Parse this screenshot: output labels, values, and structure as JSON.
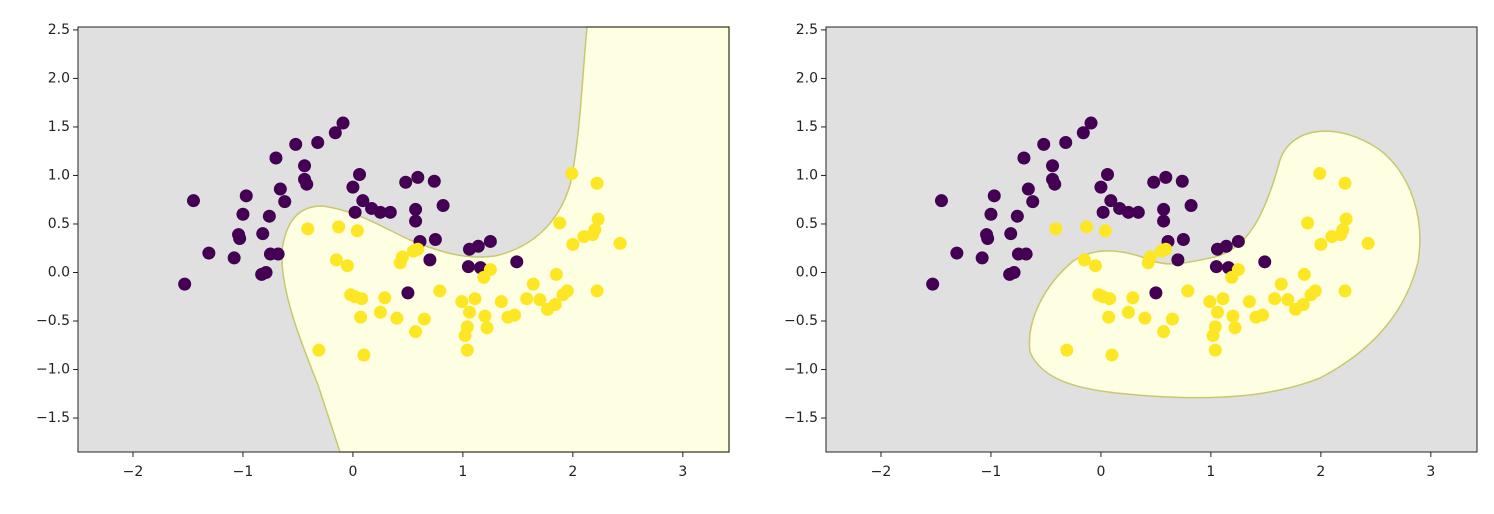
{
  "chart_data": [
    {
      "type": "scatter",
      "xlim": [
        -2.5,
        3.42
      ],
      "ylim": [
        -1.85,
        2.53
      ],
      "xticks": [
        {
          "value": -2,
          "label": "−2"
        },
        {
          "value": -1,
          "label": "−1"
        },
        0,
        1,
        2,
        3
      ],
      "yticks": [
        {
          "value": -1.5,
          "label": "−1.5"
        },
        {
          "value": -1,
          "label": "−1.0"
        },
        {
          "value": -0.5,
          "label": "−0.5"
        },
        {
          "value": 0,
          "label": "0.0"
        },
        0.5,
        {
          "value": 1,
          "label": "1.0"
        },
        1.5,
        {
          "value": 2,
          "label": "2.0"
        },
        2.5
      ],
      "series": [
        {
          "color": "#440154",
          "x": [
            -1.53,
            -1.45,
            -1.31,
            -1.08,
            -1.03,
            -1.0,
            -0.97,
            -1.04,
            -0.82,
            -0.83,
            -0.79,
            -0.76,
            -0.75,
            -0.68,
            -0.7,
            -0.66,
            -0.62,
            -0.52,
            -0.44,
            -0.44,
            -0.42,
            -0.32,
            -0.16,
            -0.09,
            0,
            0.06,
            0.02,
            0.09,
            0.17,
            0.25,
            0.34,
            0.48,
            0.59,
            0.57,
            0.57,
            0.61,
            0.74,
            0.75,
            0.82,
            0.7,
            0.5,
            1.06,
            1.14,
            1.25,
            1.05,
            1.16,
            1.49
          ],
          "y": [
            -0.12,
            0.74,
            0.2,
            0.15,
            0.35,
            0.6,
            0.79,
            0.39,
            0.4,
            -0.02,
            0.0,
            0.58,
            0.19,
            0.19,
            1.18,
            0.86,
            0.73,
            1.32,
            1.1,
            0.96,
            0.91,
            1.34,
            1.44,
            1.54,
            0.88,
            1.01,
            0.62,
            0.74,
            0.66,
            0.62,
            0.62,
            0.93,
            0.98,
            0.65,
            0.53,
            0.32,
            0.94,
            0.34,
            0.69,
            0.13,
            -0.21,
            0.24,
            0.27,
            0.32,
            0.06,
            0.05,
            0.11
          ]
        },
        {
          "color": "#fde725",
          "x": [
            -0.41,
            -0.13,
            0.04,
            -0.15,
            -0.05,
            0.02,
            0.08,
            -0.02,
            0.07,
            0.25,
            0.29,
            0.4,
            0.43,
            0.45,
            0.55,
            0.59,
            0.57,
            0.65,
            0.79,
            -0.31,
            0.1,
            0.99,
            1.04,
            1.02,
            1.04,
            1.06,
            1.11,
            1.2,
            1.22,
            1.25,
            1.19,
            1.35,
            1.41,
            1.47,
            1.58,
            1.64,
            1.7,
            1.77,
            1.84,
            1.85,
            1.91,
            1.95,
            1.88,
            1.99,
            2.0,
            2.1,
            2.18,
            2.23,
            2.22,
            2.2,
            2.22,
            2.43
          ],
          "y": [
            0.45,
            0.47,
            0.43,
            0.13,
            0.07,
            -0.25,
            -0.27,
            -0.23,
            -0.46,
            -0.41,
            -0.26,
            -0.47,
            0.1,
            0.16,
            0.22,
            0.24,
            -0.61,
            -0.48,
            -0.19,
            -0.8,
            -0.85,
            -0.3,
            -0.56,
            -0.65,
            -0.8,
            -0.41,
            -0.27,
            -0.45,
            -0.57,
            0.03,
            -0.05,
            -0.3,
            -0.46,
            -0.44,
            -0.27,
            -0.12,
            -0.28,
            -0.38,
            -0.33,
            -0.02,
            -0.23,
            -0.19,
            0.51,
            1.02,
            0.29,
            0.37,
            0.39,
            0.55,
            0.92,
            0.44,
            -0.19,
            0.3
          ]
        }
      ]
    },
    {
      "type": "scatter",
      "xlim": [
        -2.5,
        3.42
      ],
      "ylim": [
        -1.85,
        2.53
      ],
      "xticks": [
        {
          "value": -2,
          "label": "−2"
        },
        {
          "value": -1,
          "label": "−1"
        },
        0,
        1,
        2,
        3
      ],
      "yticks": [
        {
          "value": -1.5,
          "label": "−1.5"
        },
        {
          "value": -1,
          "label": "−1.0"
        },
        {
          "value": -0.5,
          "label": "−0.5"
        },
        {
          "value": 0,
          "label": "0.0"
        },
        0.5,
        {
          "value": 1,
          "label": "1.0"
        },
        1.5,
        {
          "value": 2,
          "label": "2.0"
        },
        2.5
      ],
      "series": [
        {
          "color": "#440154",
          "x": [
            -1.53,
            -1.45,
            -1.31,
            -1.08,
            -1.03,
            -1.0,
            -0.97,
            -1.04,
            -0.82,
            -0.83,
            -0.79,
            -0.76,
            -0.75,
            -0.68,
            -0.7,
            -0.66,
            -0.62,
            -0.52,
            -0.44,
            -0.44,
            -0.42,
            -0.32,
            -0.16,
            -0.09,
            0,
            0.06,
            0.02,
            0.09,
            0.17,
            0.25,
            0.34,
            0.48,
            0.59,
            0.57,
            0.57,
            0.61,
            0.74,
            0.75,
            0.82,
            0.7,
            0.5,
            1.06,
            1.14,
            1.25,
            1.05,
            1.16,
            1.49
          ],
          "y": [
            -0.12,
            0.74,
            0.2,
            0.15,
            0.35,
            0.6,
            0.79,
            0.39,
            0.4,
            -0.02,
            0.0,
            0.58,
            0.19,
            0.19,
            1.18,
            0.86,
            0.73,
            1.32,
            1.1,
            0.96,
            0.91,
            1.34,
            1.44,
            1.54,
            0.88,
            1.01,
            0.62,
            0.74,
            0.66,
            0.62,
            0.62,
            0.93,
            0.98,
            0.65,
            0.53,
            0.32,
            0.94,
            0.34,
            0.69,
            0.13,
            -0.21,
            0.24,
            0.27,
            0.32,
            0.06,
            0.05,
            0.11
          ]
        },
        {
          "color": "#fde725",
          "x": [
            -0.41,
            -0.13,
            0.04,
            -0.15,
            -0.05,
            0.02,
            0.08,
            -0.02,
            0.07,
            0.25,
            0.29,
            0.4,
            0.43,
            0.45,
            0.55,
            0.59,
            0.57,
            0.65,
            0.79,
            -0.31,
            0.1,
            0.99,
            1.04,
            1.02,
            1.04,
            1.06,
            1.11,
            1.2,
            1.22,
            1.25,
            1.19,
            1.35,
            1.41,
            1.47,
            1.58,
            1.64,
            1.7,
            1.77,
            1.84,
            1.85,
            1.91,
            1.95,
            1.88,
            1.99,
            2.0,
            2.1,
            2.18,
            2.23,
            2.22,
            2.2,
            2.22,
            2.43
          ],
          "y": [
            0.45,
            0.47,
            0.43,
            0.13,
            0.07,
            -0.25,
            -0.27,
            -0.23,
            -0.46,
            -0.41,
            -0.26,
            -0.47,
            0.1,
            0.16,
            0.22,
            0.24,
            -0.61,
            -0.48,
            -0.19,
            -0.8,
            -0.85,
            -0.3,
            -0.56,
            -0.65,
            -0.8,
            -0.41,
            -0.27,
            -0.45,
            -0.57,
            0.03,
            -0.05,
            -0.3,
            -0.46,
            -0.44,
            -0.27,
            -0.12,
            -0.28,
            -0.38,
            -0.33,
            -0.02,
            -0.23,
            -0.19,
            0.51,
            1.02,
            0.29,
            0.37,
            0.39,
            0.55,
            0.92,
            0.44,
            -0.19,
            0.3
          ]
        }
      ]
    }
  ]
}
